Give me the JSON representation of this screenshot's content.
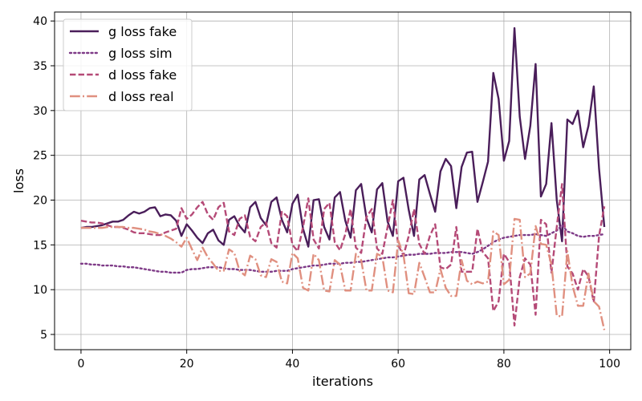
{
  "chart_data": {
    "type": "line",
    "xlabel": "iterations",
    "ylabel": "loss",
    "xlim": [
      -5,
      104
    ],
    "ylim": [
      3.3,
      41
    ],
    "x_ticks": [
      0,
      20,
      40,
      60,
      80,
      100
    ],
    "y_ticks": [
      5,
      10,
      15,
      20,
      25,
      30,
      35,
      40
    ],
    "grid": true,
    "legend_position": "upper-left",
    "x": [
      0,
      1,
      2,
      3,
      4,
      5,
      6,
      7,
      8,
      9,
      10,
      11,
      12,
      13,
      14,
      15,
      16,
      17,
      18,
      19,
      20,
      21,
      22,
      23,
      24,
      25,
      26,
      27,
      28,
      29,
      30,
      31,
      32,
      33,
      34,
      35,
      36,
      37,
      38,
      39,
      40,
      41,
      42,
      43,
      44,
      45,
      46,
      47,
      48,
      49,
      50,
      51,
      52,
      53,
      54,
      55,
      56,
      57,
      58,
      59,
      60,
      61,
      62,
      63,
      64,
      65,
      66,
      67,
      68,
      69,
      70,
      71,
      72,
      73,
      74,
      75,
      76,
      77,
      78,
      79,
      80,
      81,
      82,
      83,
      84,
      85,
      86,
      87,
      88,
      89,
      90,
      91,
      92,
      93,
      94,
      95,
      96,
      97,
      98,
      99
    ],
    "series": [
      {
        "name": "g loss fake",
        "color": "#4a1e5a",
        "dash": "solid",
        "values": [
          16.9,
          17.0,
          17.0,
          17.1,
          17.2,
          17.4,
          17.6,
          17.6,
          17.8,
          18.3,
          18.7,
          18.5,
          18.7,
          19.1,
          19.2,
          18.2,
          18.4,
          18.3,
          17.7,
          16.0,
          17.3,
          16.6,
          15.8,
          15.2,
          16.3,
          16.7,
          15.5,
          15.0,
          17.8,
          18.2,
          17.1,
          16.4,
          19.2,
          19.8,
          18.0,
          17.2,
          19.8,
          20.3,
          17.8,
          16.4,
          19.6,
          20.6,
          16.8,
          14.8,
          20.0,
          20.1,
          17.0,
          15.6,
          20.3,
          20.9,
          17.7,
          15.8,
          21.1,
          21.8,
          18.0,
          16.4,
          21.2,
          21.9,
          17.6,
          16.0,
          22.1,
          22.5,
          18.9,
          16.0,
          22.3,
          22.8,
          20.7,
          18.7,
          23.2,
          24.6,
          23.8,
          19.1,
          23.7,
          25.3,
          25.4,
          19.8,
          22.0,
          24.3,
          34.2,
          31.3,
          24.4,
          26.6,
          39.2,
          29.3,
          24.6,
          28.3,
          35.2,
          20.4,
          21.8,
          28.6,
          20.0,
          15.4,
          29.0,
          28.5,
          30.0,
          25.9,
          28.3,
          32.7,
          23.5,
          17.0
        ]
      },
      {
        "name": "g loss sim",
        "color": "#7e3a87",
        "dash": "dotted",
        "values": [
          12.9,
          12.9,
          12.8,
          12.8,
          12.7,
          12.7,
          12.7,
          12.6,
          12.6,
          12.5,
          12.5,
          12.4,
          12.3,
          12.2,
          12.1,
          12.0,
          12.0,
          11.9,
          11.9,
          11.9,
          12.2,
          12.3,
          12.3,
          12.4,
          12.5,
          12.5,
          12.5,
          12.4,
          12.3,
          12.3,
          12.2,
          12.2,
          12.2,
          12.1,
          12.0,
          12.0,
          12.0,
          12.1,
          12.1,
          12.1,
          12.3,
          12.4,
          12.5,
          12.6,
          12.7,
          12.7,
          12.8,
          12.9,
          12.9,
          12.9,
          13.0,
          13.0,
          13.1,
          13.1,
          13.2,
          13.3,
          13.4,
          13.5,
          13.6,
          13.6,
          13.7,
          13.8,
          13.9,
          13.9,
          14.0,
          14.0,
          14.0,
          14.1,
          14.1,
          14.1,
          14.2,
          14.2,
          14.2,
          14.1,
          14.0,
          14.2,
          14.5,
          14.9,
          15.3,
          15.6,
          15.8,
          15.9,
          16.0,
          16.1,
          16.1,
          16.1,
          16.2,
          16.1,
          16.0,
          16.3,
          16.6,
          17.2,
          16.5,
          16.3,
          16.0,
          15.9,
          16.0,
          16.0,
          16.1,
          16.2
        ]
      },
      {
        "name": "d loss fake",
        "color": "#b54a77",
        "dash": "dashed",
        "values": [
          17.7,
          17.6,
          17.5,
          17.5,
          17.4,
          17.2,
          17.0,
          17.0,
          16.9,
          16.7,
          16.4,
          16.3,
          16.3,
          16.2,
          16.1,
          16.1,
          16.4,
          16.6,
          16.8,
          19.1,
          17.9,
          18.4,
          19.2,
          19.8,
          18.4,
          17.8,
          19.2,
          19.7,
          16.5,
          16.1,
          17.9,
          18.3,
          15.9,
          15.4,
          17.0,
          17.5,
          15.2,
          14.7,
          18.7,
          18.2,
          15.0,
          14.3,
          17.0,
          20.2,
          15.6,
          14.6,
          19.0,
          19.7,
          15.3,
          14.4,
          16.2,
          19.0,
          14.7,
          14.1,
          18.1,
          19.0,
          14.6,
          14.0,
          17.0,
          20.0,
          15.0,
          13.8,
          16.0,
          19.0,
          15.1,
          14.0,
          16.0,
          17.3,
          12.5,
          12.3,
          12.8,
          17.0,
          12.0,
          12.0,
          12.0,
          16.8,
          14.2,
          13.5,
          7.6,
          8.7,
          14.0,
          13.1,
          6.0,
          11.4,
          13.5,
          12.8,
          7.2,
          17.8,
          17.3,
          11.9,
          17.0,
          21.8,
          12.6,
          11.8,
          10.0,
          12.3,
          11.5,
          8.6,
          16.0,
          19.3
        ]
      },
      {
        "name": "d loss real",
        "color": "#e09080",
        "dash": "dashdot",
        "values": [
          16.9,
          16.9,
          16.9,
          16.9,
          16.9,
          17.0,
          17.0,
          17.0,
          17.0,
          16.9,
          16.9,
          16.8,
          16.7,
          16.5,
          16.4,
          16.2,
          16.0,
          15.7,
          15.3,
          14.8,
          15.8,
          14.5,
          13.3,
          14.7,
          13.6,
          12.9,
          12.1,
          12.1,
          14.5,
          14.1,
          12.1,
          11.6,
          13.8,
          13.4,
          11.6,
          11.4,
          13.4,
          13.1,
          10.9,
          10.7,
          14.1,
          13.5,
          10.2,
          9.9,
          14.0,
          13.3,
          9.9,
          9.8,
          13.3,
          12.8,
          9.9,
          9.9,
          14.0,
          13.3,
          9.9,
          9.9,
          14.0,
          13.7,
          9.9,
          9.7,
          15.5,
          13.9,
          9.6,
          9.5,
          13.0,
          11.4,
          9.7,
          9.7,
          12.3,
          10.2,
          9.3,
          9.3,
          13.3,
          11.0,
          10.6,
          10.9,
          10.7,
          10.9,
          16.5,
          16.1,
          10.6,
          11.1,
          17.9,
          17.8,
          11.4,
          11.8,
          17.1,
          15.1,
          15.0,
          12.8,
          7.1,
          7.0,
          14.3,
          10.4,
          8.2,
          8.2,
          11.8,
          8.7,
          8.1,
          5.5
        ]
      }
    ]
  }
}
